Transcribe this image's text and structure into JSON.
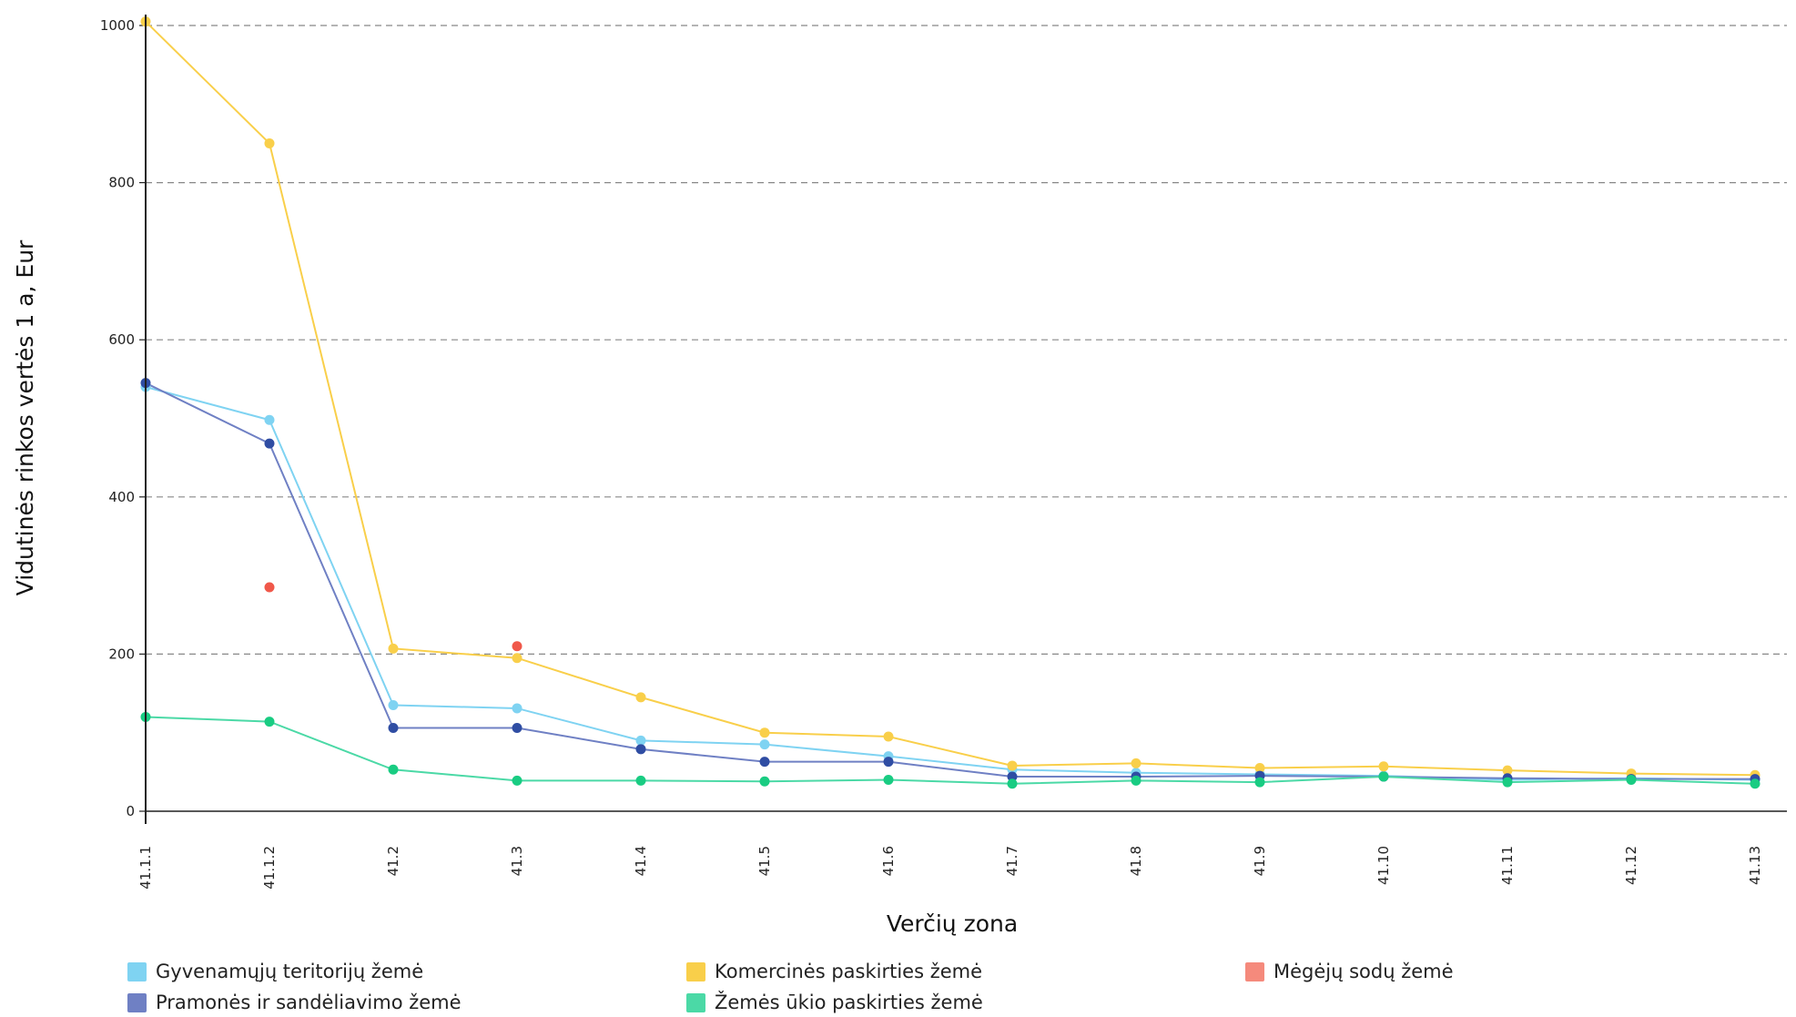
{
  "chart_data": {
    "type": "line",
    "xlabel": "Verčių zona",
    "ylabel": "Vidutinės rinkos vertės 1 a, Eur",
    "categories": [
      "41.1.1",
      "41.1.2",
      "41.2",
      "41.3",
      "41.4",
      "41.5",
      "41.6",
      "41.7",
      "41.8",
      "41.9",
      "41.10",
      "41.11",
      "41.12",
      "41.13"
    ],
    "ylim": [
      0,
      1000
    ],
    "yticks": [
      0,
      200,
      400,
      600,
      800,
      1000
    ],
    "grid": "horizontal dashed",
    "legend_position": "bottom",
    "series": [
      {
        "name": "Gyvenamųjų teritorijų žemė",
        "color": "#7fd3f2",
        "values": [
          540,
          498,
          135,
          131,
          90,
          85,
          70,
          53,
          49,
          47,
          45,
          40,
          42,
          40
        ]
      },
      {
        "name": "Komercinės paskirties žemė",
        "color": "#f9cf4a",
        "values": [
          1005,
          850,
          207,
          195,
          145,
          100,
          95,
          58,
          61,
          55,
          57,
          52,
          48,
          46
        ]
      },
      {
        "name": "Mėgėjų sodų žemė",
        "color": "#f58a7c",
        "marker_color": "#f0584a",
        "values": [
          null,
          285,
          null,
          210,
          null,
          null,
          null,
          null,
          null,
          null,
          null,
          null,
          null,
          null
        ]
      },
      {
        "name": "Pramonės ir sandėliavimo žemė",
        "color": "#6f80c4",
        "marker_color": "#2f4da3",
        "values": [
          545,
          468,
          106,
          106,
          79,
          63,
          63,
          44,
          44,
          45,
          44,
          42,
          41,
          41
        ]
      },
      {
        "name": "Žemės ūkio paskirties žemė",
        "color": "#4bd9a6",
        "marker_color": "#19cc82",
        "values": [
          120,
          114,
          53,
          39,
          39,
          38,
          40,
          35,
          39,
          37,
          44,
          37,
          40,
          35
        ]
      }
    ]
  }
}
